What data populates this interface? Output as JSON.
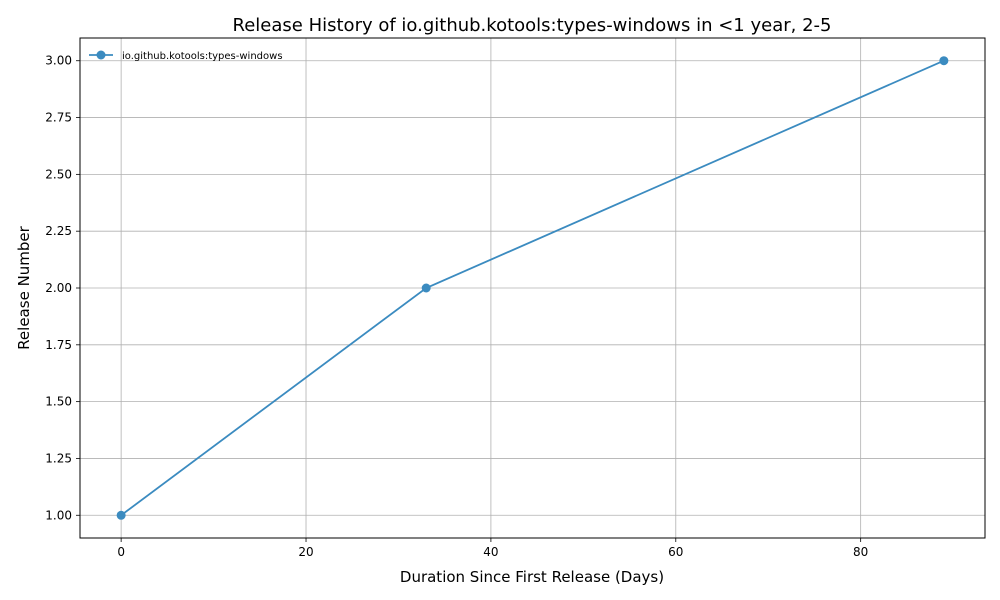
{
  "chart_data": {
    "type": "line",
    "title": "Release History of io.github.kotools:types-windows in <1 year, 2-5",
    "xlabel": "Duration Since First Release (Days)",
    "ylabel": "Release Number",
    "xlim": [
      -4.45,
      93.45
    ],
    "ylim": [
      0.9,
      3.1
    ],
    "x_ticks": [
      0,
      20,
      40,
      60,
      80
    ],
    "y_ticks": [
      1.0,
      1.25,
      1.5,
      1.75,
      2.0,
      2.25,
      2.5,
      2.75,
      3.0
    ],
    "x_tick_labels": [
      "0",
      "20",
      "40",
      "60",
      "80"
    ],
    "y_tick_labels": [
      "1.00",
      "1.25",
      "1.50",
      "1.75",
      "2.00",
      "2.25",
      "2.50",
      "2.75",
      "3.00"
    ],
    "grid": true,
    "legend_position": "top-left",
    "series": [
      {
        "name": "io.github.kotools:types-windows",
        "color": "#3b8bc0",
        "x": [
          0,
          33,
          89
        ],
        "y": [
          1,
          2,
          3
        ]
      }
    ]
  }
}
